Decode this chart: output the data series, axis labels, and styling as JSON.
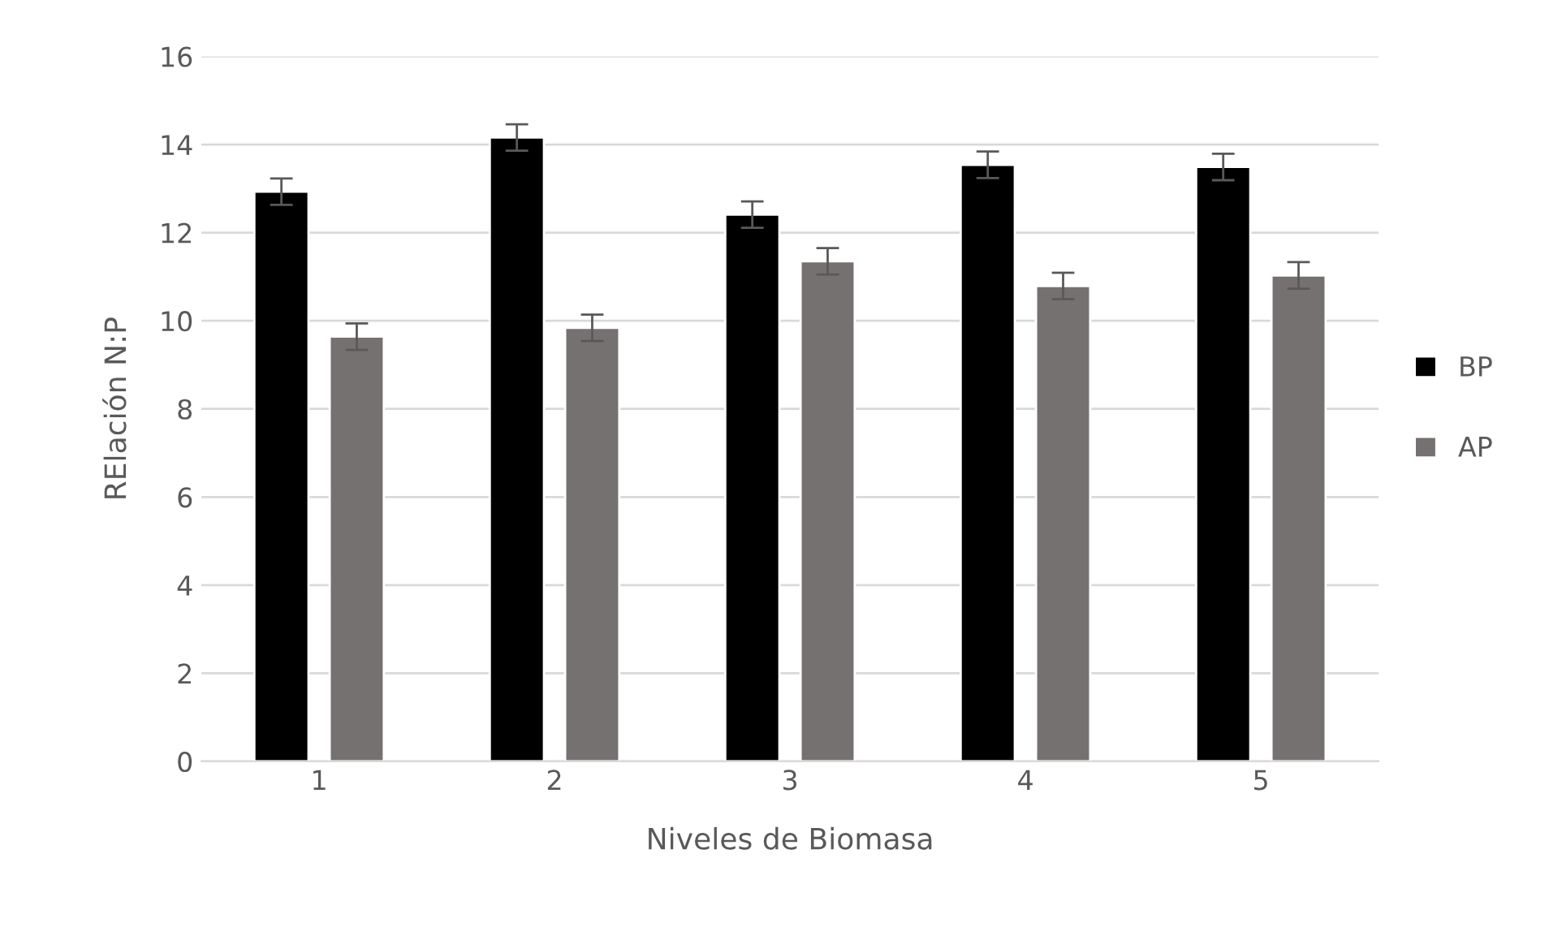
{
  "chart_data": {
    "type": "bar",
    "xlabel": "Niveles de Biomasa",
    "ylabel": "RElación N:P",
    "categories": [
      "1",
      "2",
      "3",
      "4",
      "5"
    ],
    "series": [
      {
        "name": "BP",
        "color": "#000000",
        "values": [
          12.93,
          14.16,
          12.41,
          13.54,
          13.49
        ],
        "errors": [
          0.3,
          0.3,
          0.3,
          0.3,
          0.3
        ]
      },
      {
        "name": "AP",
        "color": "#767171",
        "values": [
          9.64,
          9.84,
          11.35,
          10.79,
          11.03
        ],
        "errors": [
          0.3,
          0.3,
          0.3,
          0.3,
          0.3
        ]
      }
    ],
    "ylim": [
      0,
      16
    ],
    "yticks": [
      0,
      2,
      4,
      6,
      8,
      10,
      12,
      14,
      16
    ],
    "grid": "y",
    "legend": "right"
  }
}
